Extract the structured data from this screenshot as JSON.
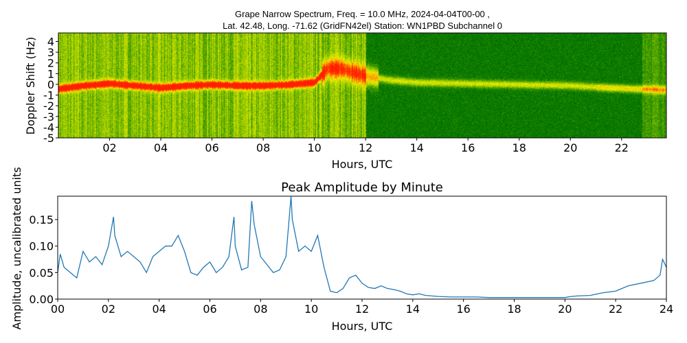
{
  "chart_data": [
    {
      "type": "heatmap",
      "title_line1": "Grape Narrow Spectrum, Freq. = 10.0 MHz, 2024-04-04T00-00 ,",
      "title_line2": "Lat.  42.48, Long. -71.62 (GridFN42el) Station: WN1PBD Subchannel 0",
      "xlabel": "Hours, UTC",
      "ylabel": "Doppler Shift (Hz)",
      "xlim": [
        0,
        23.75
      ],
      "ylim": [
        -5,
        4.8
      ],
      "xticks": [
        "02",
        "04",
        "06",
        "08",
        "10",
        "12",
        "14",
        "16",
        "18",
        "20",
        "22"
      ],
      "xtick_values": [
        2,
        4,
        6,
        8,
        10,
        12,
        14,
        16,
        18,
        20,
        22
      ],
      "yticks": [
        "4",
        "3",
        "2",
        "1",
        "0",
        "-1",
        "-2",
        "-3",
        "-4",
        "-5"
      ],
      "ytick_values": [
        4,
        3,
        2,
        1,
        0,
        -1,
        -2,
        -3,
        -4,
        -5
      ],
      "colormap": [
        "#007000",
        "#3c9a00",
        "#a8d000",
        "#f0f000",
        "#ff8000",
        "#ff2000"
      ],
      "doppler_trace": {
        "hours": [
          0,
          1,
          2,
          3,
          4,
          5,
          6,
          7,
          8,
          9,
          10,
          10.5,
          11,
          12,
          13,
          14,
          16,
          18,
          20,
          21.5,
          22.5,
          23.75
        ],
        "hz": [
          -0.4,
          -0.1,
          0.1,
          -0.1,
          -0.3,
          -0.1,
          0,
          -0.1,
          -0.1,
          0,
          0.2,
          1.5,
          1.5,
          0.8,
          0.4,
          0.2,
          0.1,
          0,
          -0.1,
          -0.3,
          -0.4,
          -0.5
        ]
      }
    },
    {
      "type": "line",
      "title": "Peak Amplitude by Minute",
      "xlabel": "Hours, UTC",
      "ylabel": "Amplitude, uncalibrated units",
      "xlim": [
        0,
        24
      ],
      "ylim": [
        0,
        0.194
      ],
      "xticks": [
        "00",
        "02",
        "04",
        "06",
        "08",
        "10",
        "12",
        "14",
        "16",
        "18",
        "20",
        "22",
        "24"
      ],
      "xtick_values": [
        0,
        2,
        4,
        6,
        8,
        10,
        12,
        14,
        16,
        18,
        20,
        22,
        24
      ],
      "yticks": [
        "0.00",
        "0.05",
        "0.10",
        "0.15"
      ],
      "ytick_values": [
        0,
        0.05,
        0.1,
        0.15
      ],
      "color": "#1f77b4",
      "x": [
        0,
        0.1,
        0.25,
        0.5,
        0.75,
        1,
        1.25,
        1.5,
        1.75,
        2,
        2.2,
        2.25,
        2.5,
        2.75,
        3,
        3.25,
        3.5,
        3.75,
        4,
        4.25,
        4.5,
        4.75,
        5,
        5.25,
        5.5,
        5.75,
        6,
        6.25,
        6.5,
        6.75,
        6.95,
        7,
        7.25,
        7.5,
        7.65,
        7.75,
        8,
        8.25,
        8.5,
        8.75,
        9,
        9.2,
        9.25,
        9.5,
        9.75,
        10,
        10.25,
        10.5,
        10.75,
        11,
        11.25,
        11.5,
        11.75,
        12,
        12.25,
        12.5,
        12.75,
        13,
        13.25,
        13.5,
        13.75,
        14,
        14.25,
        14.5,
        14.75,
        15,
        15.5,
        16,
        16.5,
        17,
        17.5,
        18,
        18.5,
        19,
        19.5,
        20,
        20.25,
        20.5,
        21,
        21.5,
        22,
        22.5,
        23,
        23.5,
        23.75,
        23.85,
        24
      ],
      "y": [
        0.05,
        0.085,
        0.06,
        0.05,
        0.04,
        0.09,
        0.07,
        0.08,
        0.065,
        0.1,
        0.155,
        0.12,
        0.08,
        0.09,
        0.08,
        0.07,
        0.05,
        0.08,
        0.09,
        0.1,
        0.1,
        0.12,
        0.09,
        0.05,
        0.045,
        0.06,
        0.07,
        0.05,
        0.06,
        0.08,
        0.155,
        0.1,
        0.055,
        0.06,
        0.185,
        0.14,
        0.08,
        0.065,
        0.05,
        0.055,
        0.08,
        0.194,
        0.15,
        0.09,
        0.1,
        0.09,
        0.12,
        0.06,
        0.015,
        0.012,
        0.02,
        0.04,
        0.045,
        0.03,
        0.022,
        0.02,
        0.025,
        0.02,
        0.018,
        0.015,
        0.01,
        0.008,
        0.01,
        0.007,
        0.006,
        0.005,
        0.004,
        0.004,
        0.004,
        0.003,
        0.003,
        0.003,
        0.003,
        0.003,
        0.003,
        0.003,
        0.005,
        0.006,
        0.007,
        0.012,
        0.015,
        0.025,
        0.03,
        0.035,
        0.045,
        0.075,
        0.06
      ]
    }
  ]
}
